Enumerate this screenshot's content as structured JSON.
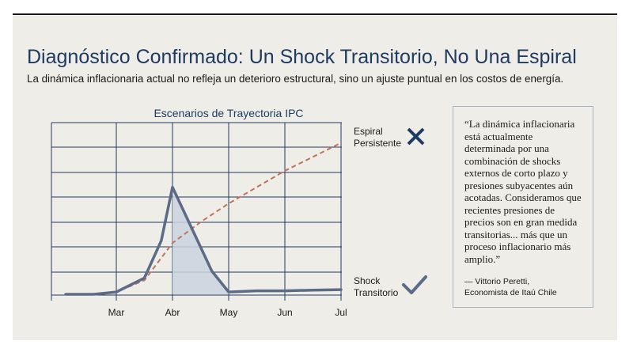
{
  "header": {
    "title": "Diagnóstico Confirmado: Un Shock Transitorio, No Una Espiral",
    "subtitle": "La dinámica inflacionaria actual no refleja un deterioro estructural, sino un ajuste puntual en los costos de energía."
  },
  "chart_data": {
    "type": "line",
    "title": "Escenarios de Trayectoria IPC",
    "xlabel": "",
    "ylabel": "",
    "x_ticks": [
      "Mar",
      "Abr",
      "May",
      "Jun",
      "Jul"
    ],
    "xlim": [
      -0.9,
      4.0
    ],
    "ylim": [
      0,
      7.2
    ],
    "grid": true,
    "legend": "inline-right",
    "series": [
      {
        "name": "Espiral Persistente",
        "style": "dashed",
        "color": "#c0735b",
        "verdict_icon": "cross-icon",
        "x": [
          -0.9,
          -0.4,
          0.0,
          0.5,
          1.0,
          1.5,
          2.0,
          2.5,
          3.0,
          3.5,
          4.0
        ],
        "y": [
          0.0,
          0.0,
          0.1,
          0.6,
          2.2,
          3.1,
          3.9,
          4.6,
          5.3,
          5.9,
          6.5
        ]
      },
      {
        "name": "Shock Transitorio",
        "style": "solid",
        "color": "#5c6b86",
        "verdict_icon": "check-icon",
        "x": [
          -0.9,
          -0.4,
          0.0,
          0.5,
          0.8,
          1.0,
          1.7,
          2.0,
          2.5,
          3.0,
          3.5,
          4.0
        ],
        "y": [
          0.0,
          0.0,
          0.1,
          0.7,
          2.3,
          4.6,
          1.0,
          0.1,
          0.15,
          0.15,
          0.18,
          0.2
        ]
      }
    ]
  },
  "quote": {
    "text": "“La dinámica inflacionaria está actualmente determinada por una combinación de shocks externos de corto plazo y presiones subyacentes aún acotadas. Consideramos que recientes presiones de precios son en gran medida transitorias... más que un proceso inflacionario más amplio.”",
    "author": "— Vittorio Peretti,",
    "role": "Economista de Itaú Chile"
  },
  "colors": {
    "title": "#1f3b62",
    "panel": "#eeede7",
    "grid": "#25395f",
    "persistent": "#c0735b",
    "transitory": "#5c6b86",
    "fill": "#c9d2df"
  }
}
